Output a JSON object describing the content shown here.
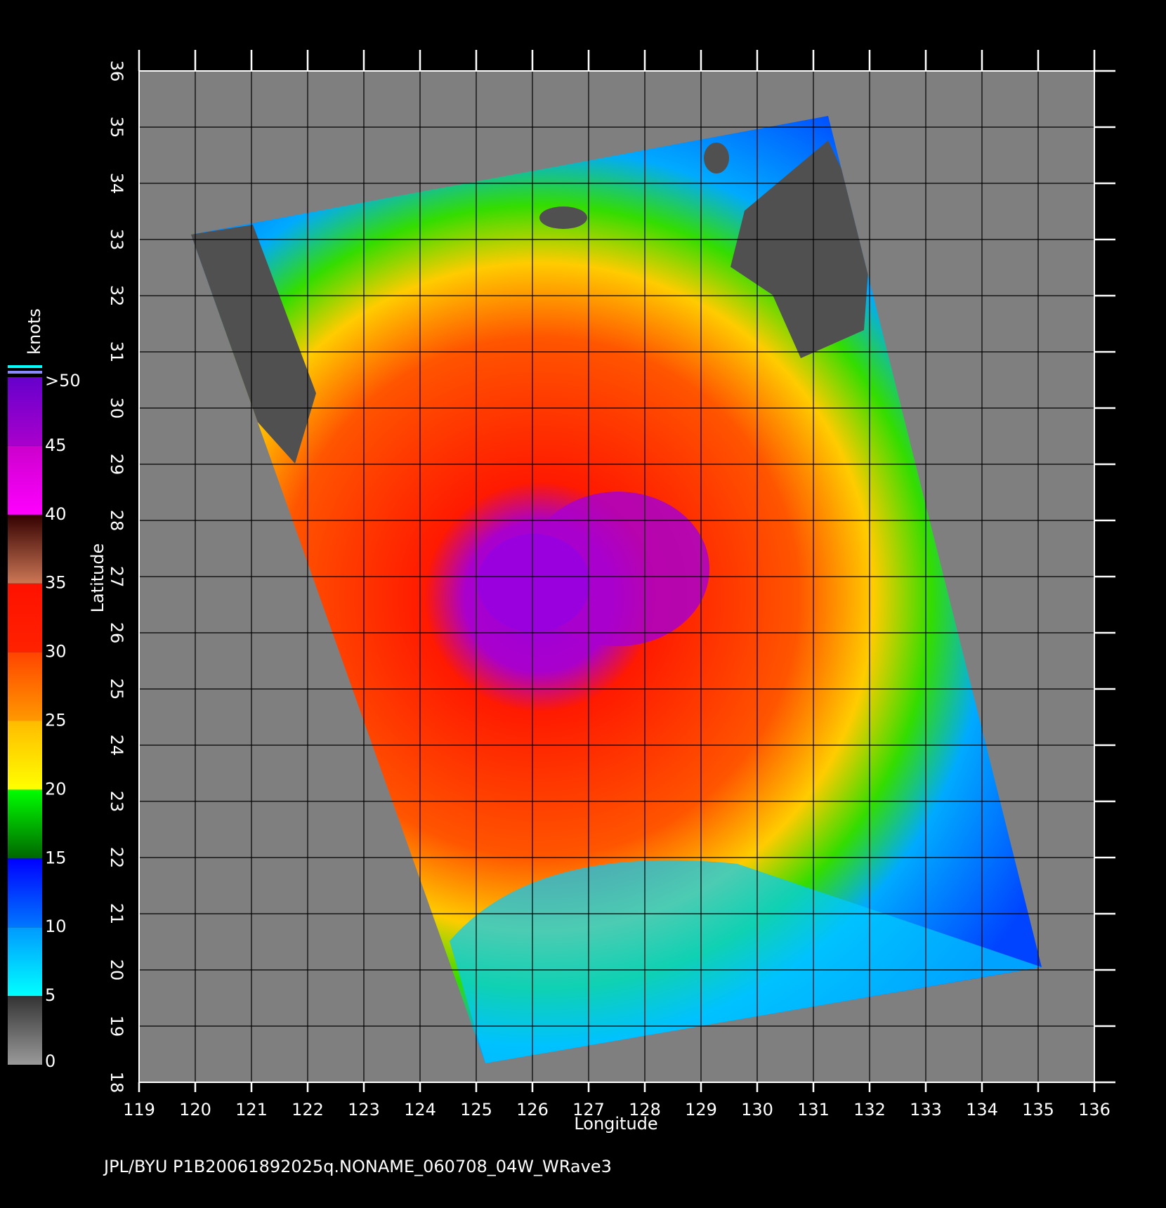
{
  "chart_data": {
    "type": "map",
    "x_label": "Longitude",
    "y_label": "Latitude",
    "footer": "JPL/BYU  P1B20061892025q.NONAME_060708_04W_WRave3",
    "xlim": [
      119,
      136
    ],
    "ylim": [
      18,
      36
    ],
    "xticks": [
      119,
      120,
      121,
      122,
      123,
      124,
      125,
      126,
      127,
      128,
      129,
      130,
      131,
      132,
      133,
      134,
      135,
      136
    ],
    "yticks": [
      18,
      19,
      20,
      21,
      22,
      23,
      24,
      25,
      26,
      27,
      28,
      29,
      30,
      31,
      32,
      33,
      34,
      35,
      36
    ],
    "grid": true,
    "colorbar": {
      "label": "knots",
      "lim": [
        0,
        50
      ],
      "ticks": [
        0,
        5,
        10,
        15,
        20,
        25,
        30,
        35,
        40,
        45,
        {
          "value": 50,
          "label": ">50"
        }
      ],
      "colors": [
        [
          "#9a9a9a",
          "#333333"
        ],
        [
          "#00ffff",
          "#0099ff"
        ],
        [
          "#0077ff",
          "#0000ff"
        ],
        [
          "#006600",
          "#00ff00"
        ],
        [
          "#ffff00",
          "#ffbb00"
        ],
        [
          "#ff9900",
          "#ff4400"
        ],
        [
          "#ff2200",
          "#ff1100"
        ],
        [
          "#cc7755",
          "#330000"
        ],
        [
          "#ff00ff",
          "#cc00cc"
        ],
        [
          "#aa00cc",
          "#6600cc"
        ]
      ]
    }
  }
}
